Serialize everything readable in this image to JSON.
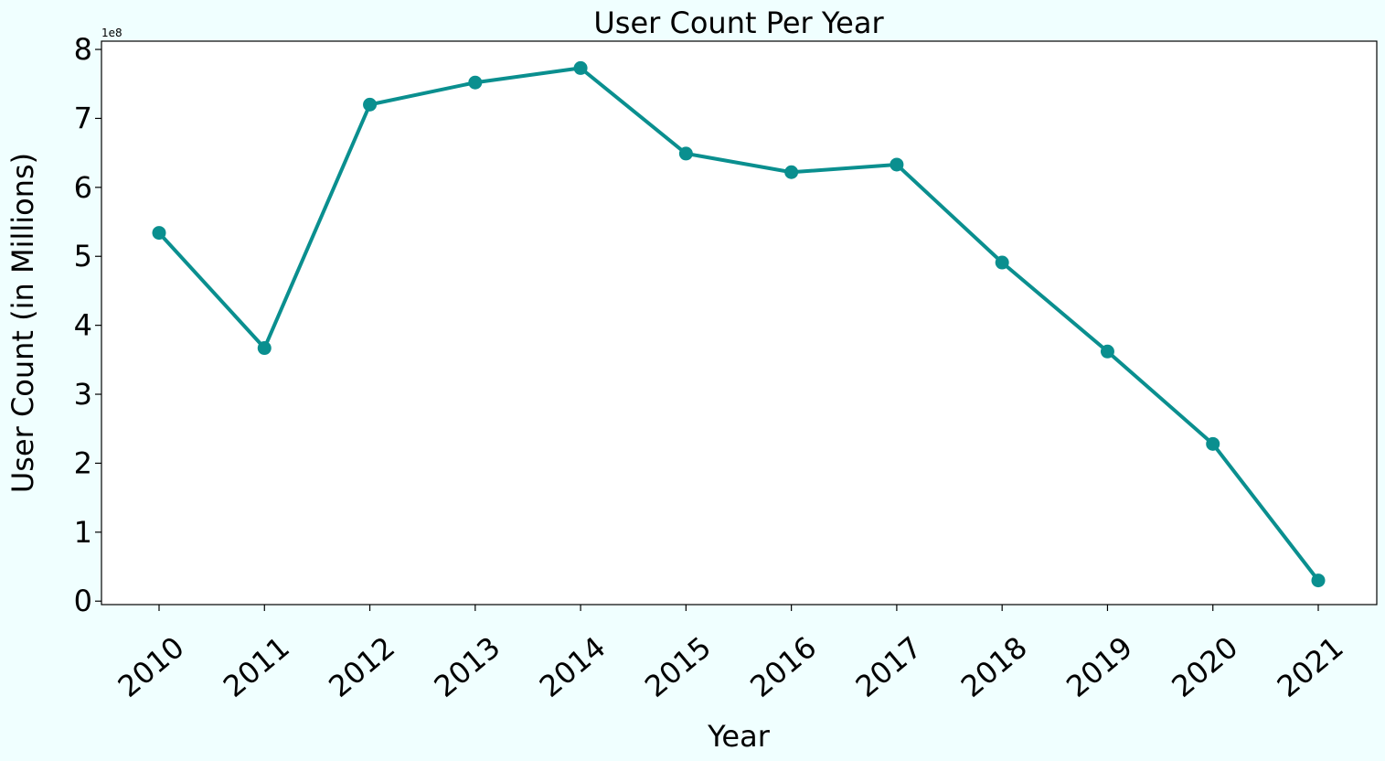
{
  "chart_data": {
    "type": "line",
    "title": "User Count Per Year",
    "xlabel": "Year",
    "ylabel": "User Count (in Millions)",
    "y_offset_label": "1e8",
    "categories": [
      "2010",
      "2011",
      "2012",
      "2013",
      "2014",
      "2015",
      "2016",
      "2017",
      "2018",
      "2019",
      "2020",
      "2021"
    ],
    "series": [
      {
        "color": "#0a8f8f",
        "values": [
          534000000,
          367000000,
          720000000,
          752000000,
          773000000,
          649000000,
          622000000,
          633000000,
          491000000,
          362000000,
          228000000,
          30000000
        ]
      }
    ],
    "ylim": [
      -5000000,
      812000000
    ],
    "y_ticks": [
      0,
      100000000,
      200000000,
      300000000,
      400000000,
      500000000,
      600000000,
      700000000,
      800000000
    ],
    "y_tick_labels": [
      "0",
      "1",
      "2",
      "3",
      "4",
      "5",
      "6",
      "7",
      "8"
    ],
    "x_tick_rotation": -40,
    "grid": false,
    "legend": "none"
  }
}
